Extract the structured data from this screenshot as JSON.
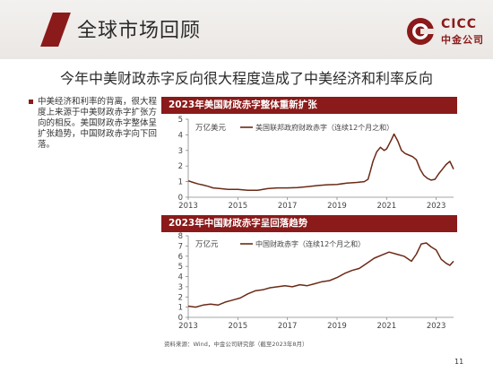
{
  "header": {
    "title": "全球市场回顾"
  },
  "logo": {
    "en": "CICC",
    "cn": "中金公司"
  },
  "subtitle": "今年中美财政赤字反向很大程度造成了中美经济和利率反向",
  "bullets": [
    "中美经济和利率的背离，很大程度上来源于中美财政赤字扩张方向的相反。美国财政赤字整体呈扩张趋势，中国财政赤字向下回落。"
  ],
  "source": "资料来源：Wind，中金公司研究部（截至2023年8月）",
  "page_number": "11",
  "colors": {
    "brand": "#8b1a1a",
    "line": "#6b2a16"
  },
  "chart_data": [
    {
      "type": "line",
      "title": "2023年美国财政赤字整体重新扩张",
      "unit": "万亿美元",
      "legend": "美国联邦政府财政赤字（连续12个月之和）",
      "ylim": [
        0,
        5
      ],
      "yticks": [
        0,
        1,
        2,
        3,
        4,
        5
      ],
      "xlim": [
        2013.0,
        2023.7
      ],
      "xticks": [
        2013,
        2015,
        2017,
        2019,
        2021,
        2023
      ],
      "series": [
        {
          "name": "美国联邦政府财政赤字（连续12个月之和）",
          "x": [
            2013.0,
            2013.2,
            2013.4,
            2013.6,
            2013.8,
            2014.0,
            2014.3,
            2014.6,
            2015.0,
            2015.4,
            2015.8,
            2016.2,
            2016.6,
            2017.0,
            2017.4,
            2017.8,
            2018.2,
            2018.6,
            2019.0,
            2019.4,
            2019.8,
            2020.1,
            2020.25,
            2020.35,
            2020.45,
            2020.6,
            2020.75,
            2020.9,
            2021.0,
            2021.1,
            2021.2,
            2021.3,
            2021.45,
            2021.6,
            2021.75,
            2021.9,
            2022.05,
            2022.2,
            2022.35,
            2022.5,
            2022.65,
            2022.8,
            2022.95,
            2023.1,
            2023.25,
            2023.4,
            2023.55,
            2023.7
          ],
          "values": [
            1.05,
            0.95,
            0.85,
            0.78,
            0.7,
            0.6,
            0.55,
            0.5,
            0.5,
            0.45,
            0.45,
            0.55,
            0.6,
            0.6,
            0.62,
            0.68,
            0.75,
            0.8,
            0.82,
            0.9,
            0.95,
            1.0,
            1.15,
            1.7,
            2.3,
            2.9,
            3.2,
            3.0,
            3.1,
            3.4,
            3.7,
            4.05,
            3.6,
            3.0,
            2.8,
            2.7,
            2.6,
            2.4,
            1.8,
            1.4,
            1.2,
            1.1,
            1.15,
            1.5,
            1.8,
            2.1,
            2.3,
            1.8
          ]
        }
      ]
    },
    {
      "type": "line",
      "title": "2023年中国财政赤字呈回落趋势",
      "unit": "万亿元",
      "legend": "中国财政赤字（连续12个月之和）",
      "ylim": [
        0,
        8
      ],
      "yticks": [
        0,
        1,
        2,
        3,
        4,
        5,
        6,
        7,
        8
      ],
      "xlim": [
        2013.0,
        2023.7
      ],
      "xticks": [
        2013,
        2015,
        2017,
        2019,
        2021,
        2023
      ],
      "series": [
        {
          "name": "中国财政赤字（连续12个月之和）",
          "x": [
            2013.0,
            2013.3,
            2013.6,
            2013.9,
            2014.2,
            2014.5,
            2014.8,
            2015.1,
            2015.4,
            2015.7,
            2016.0,
            2016.3,
            2016.6,
            2016.9,
            2017.2,
            2017.5,
            2017.8,
            2018.1,
            2018.4,
            2018.7,
            2019.0,
            2019.3,
            2019.6,
            2019.9,
            2020.2,
            2020.5,
            2020.8,
            2021.1,
            2021.4,
            2021.7,
            2022.0,
            2022.2,
            2022.4,
            2022.6,
            2022.8,
            2023.0,
            2023.2,
            2023.4,
            2023.55,
            2023.7
          ],
          "values": [
            1.1,
            1.0,
            1.2,
            1.3,
            1.2,
            1.5,
            1.7,
            1.9,
            2.3,
            2.6,
            2.7,
            2.9,
            3.0,
            3.1,
            3.0,
            3.2,
            3.1,
            3.3,
            3.5,
            3.6,
            3.9,
            4.3,
            4.6,
            4.8,
            5.3,
            5.8,
            6.1,
            6.4,
            6.2,
            6.0,
            5.5,
            6.2,
            7.2,
            7.3,
            6.9,
            6.6,
            5.7,
            5.3,
            5.1,
            5.5
          ]
        }
      ]
    }
  ]
}
